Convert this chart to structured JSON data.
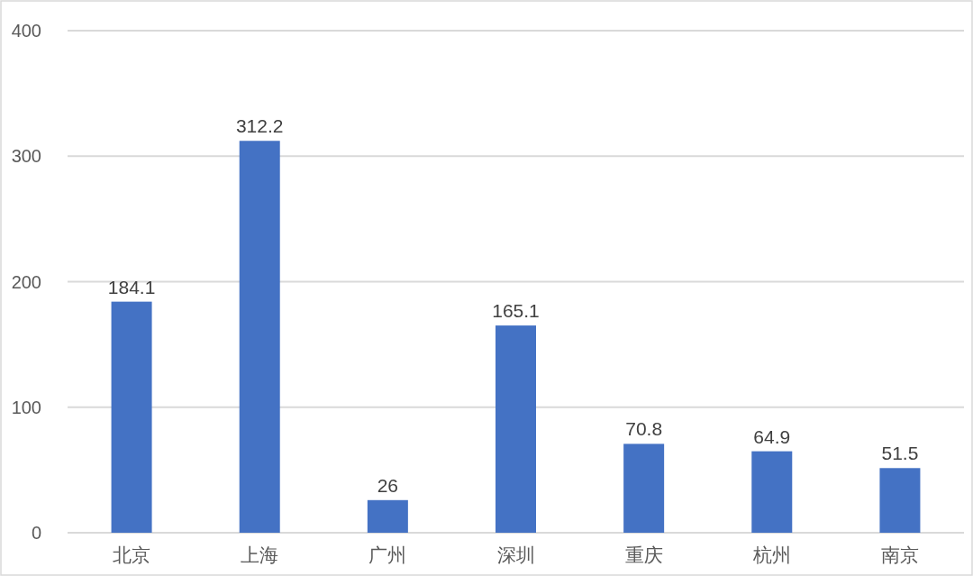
{
  "chart_data": {
    "type": "bar",
    "categories": [
      "北京",
      "上海",
      "广州",
      "深圳",
      "重庆",
      "杭州",
      "南京"
    ],
    "values": [
      184.1,
      312.2,
      26,
      165.1,
      70.8,
      64.9,
      51.5
    ],
    "color": "#4472c4",
    "ylim": [
      0,
      400
    ],
    "yticks": [
      0,
      100,
      200,
      300,
      400
    ],
    "grid": "y",
    "data_labels": true
  }
}
